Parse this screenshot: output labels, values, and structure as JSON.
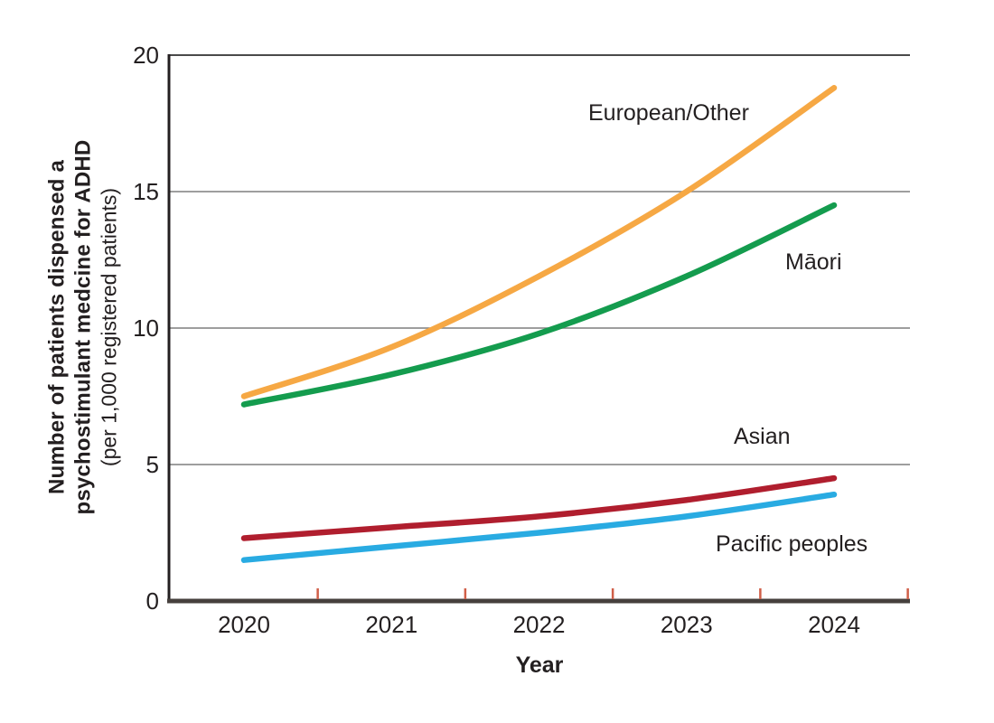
{
  "chart_data": {
    "type": "line",
    "title": "",
    "xlabel": "Year",
    "ylabel_lines": [
      "Number of patients dispensed a",
      "psychostimulant medcine for ADHD",
      "(per 1,000 registered patients)"
    ],
    "x": [
      2020,
      2021,
      2022,
      2023,
      2024
    ],
    "xticklabels": [
      "2020",
      "2021",
      "2022",
      "2023",
      "2024"
    ],
    "yticks": [
      0,
      5,
      10,
      15,
      20
    ],
    "yticklabels": [
      "0",
      "5",
      "10",
      "15",
      "20"
    ],
    "ylim": [
      0,
      20
    ],
    "xlim": [
      2019.5,
      2024.5
    ],
    "grid": "horizontal-only",
    "legend_position": "inline-labels",
    "series": [
      {
        "name": "European/Other",
        "values": [
          7.5,
          9.3,
          11.9,
          15.0,
          18.8
        ],
        "color": "#F6A844"
      },
      {
        "name": "Māori",
        "values": [
          7.2,
          8.3,
          9.8,
          11.9,
          14.5
        ],
        "color": "#149C4E"
      },
      {
        "name": "Asian",
        "values": [
          2.3,
          2.7,
          3.1,
          3.7,
          4.5
        ],
        "color": "#B01E2E"
      },
      {
        "name": "Pacific peoples",
        "values": [
          1.5,
          2.0,
          2.5,
          3.1,
          3.9
        ],
        "color": "#29ABE2"
      }
    ],
    "colors": {
      "gridline": "#7f7f7f",
      "top_border": "#4a4a4a",
      "left_axis": "#231f20",
      "bottom_axis": "#46403d",
      "x_tick": "#d05f48",
      "text": "#231f20"
    }
  }
}
